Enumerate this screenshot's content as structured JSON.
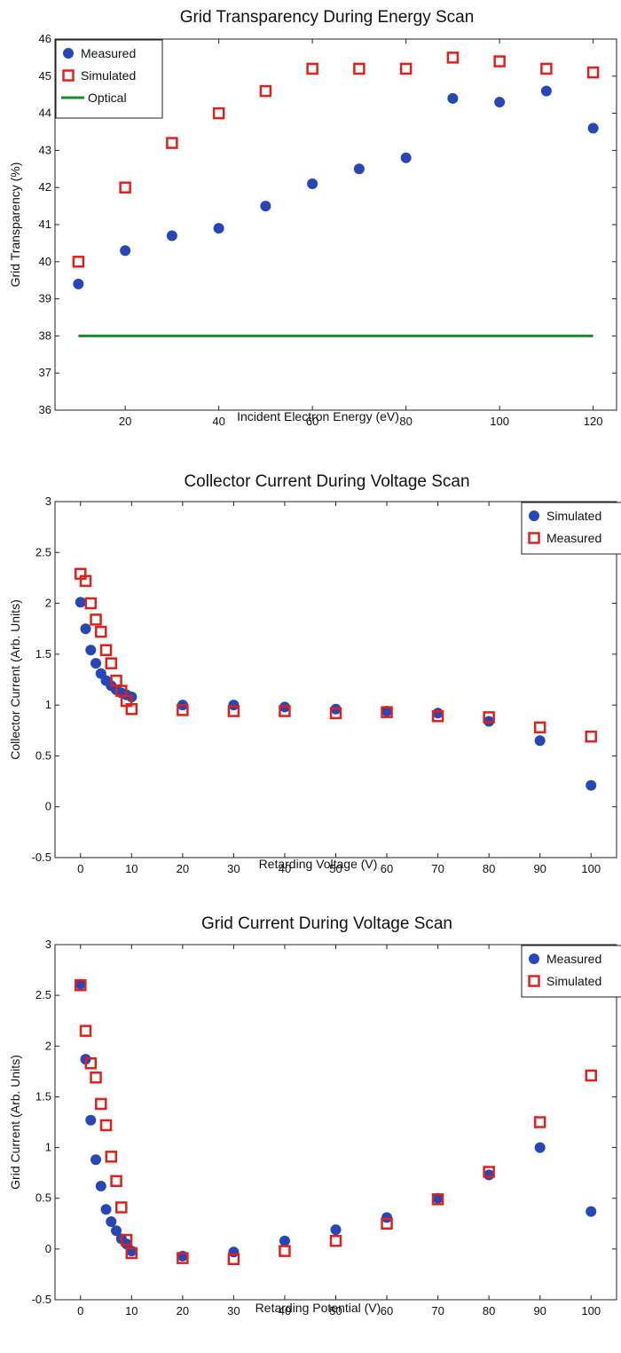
{
  "figure": {
    "colors": {
      "measured": "#2747b8",
      "simulated": "#e0201b",
      "optical": "#1a8a2e"
    }
  },
  "chart_data": [
    {
      "type": "scatter",
      "title": "Grid Transparency During Energy Scan",
      "xlabel": "Incident Electron Energy (eV)",
      "ylabel": "Grid Transparency (%)",
      "xlim": [
        5,
        125
      ],
      "ylim": [
        36,
        46
      ],
      "xticks": [
        "20",
        "40",
        "60",
        "80",
        "100",
        "120"
      ],
      "yticks": [
        "36",
        "37",
        "38",
        "39",
        "40",
        "41",
        "42",
        "43",
        "44",
        "45",
        "46"
      ],
      "legend_position": "top-left",
      "series": [
        {
          "name": "Measured",
          "marker": "circle",
          "color": "#2747b8",
          "x": [
            10,
            20,
            30,
            40,
            50,
            60,
            70,
            80,
            90,
            100,
            110,
            120
          ],
          "y": [
            39.4,
            40.3,
            40.7,
            40.9,
            41.5,
            42.1,
            42.5,
            42.8,
            44.4,
            44.3,
            44.6,
            43.6
          ]
        },
        {
          "name": "Simulated",
          "marker": "square",
          "color": "#e0201b",
          "x": [
            10,
            20,
            30,
            40,
            50,
            60,
            70,
            80,
            90,
            100,
            110,
            120
          ],
          "y": [
            40.0,
            42.0,
            43.2,
            44.0,
            44.6,
            45.2,
            45.2,
            45.2,
            45.5,
            45.4,
            45.2,
            45.1
          ]
        },
        {
          "name": "Optical",
          "marker": "line",
          "color": "#1a8a2e",
          "x": [
            10,
            120
          ],
          "y": [
            38.0,
            38.0
          ]
        }
      ]
    },
    {
      "type": "scatter",
      "title": "Collector Current During Voltage Scan",
      "xlabel": "Retarding Voltage (V)",
      "ylabel": "Collector Current (Arb. Units)",
      "xlim": [
        -5,
        105
      ],
      "ylim": [
        -0.5,
        3
      ],
      "xticks": [
        "0",
        "10",
        "20",
        "30",
        "40",
        "50",
        "60",
        "70",
        "80",
        "90",
        "100"
      ],
      "yticks": [
        "-0.5",
        "0",
        "0.5",
        "1",
        "1.5",
        "2",
        "2.5",
        "3"
      ],
      "legend_position": "top-right",
      "series": [
        {
          "name": "Simulated",
          "marker": "circle",
          "color": "#2747b8",
          "x": [
            0,
            1,
            2,
            3,
            4,
            5,
            6,
            7,
            8,
            9,
            10,
            20,
            30,
            40,
            50,
            60,
            70,
            80,
            90,
            100
          ],
          "y": [
            2.01,
            1.75,
            1.54,
            1.41,
            1.31,
            1.24,
            1.19,
            1.15,
            1.12,
            1.1,
            1.08,
            1.0,
            1.0,
            0.98,
            0.96,
            0.94,
            0.92,
            0.84,
            0.65,
            0.21
          ]
        },
        {
          "name": "Measured",
          "marker": "square",
          "color": "#e0201b",
          "x": [
            0,
            1,
            2,
            3,
            4,
            5,
            6,
            7,
            8,
            9,
            10,
            20,
            30,
            40,
            50,
            60,
            70,
            80,
            90,
            100
          ],
          "y": [
            2.29,
            2.22,
            2.0,
            1.84,
            1.72,
            1.54,
            1.41,
            1.24,
            1.14,
            1.04,
            0.96,
            0.95,
            0.94,
            0.94,
            0.92,
            0.93,
            0.89,
            0.88,
            0.78,
            0.69
          ]
        }
      ]
    },
    {
      "type": "scatter",
      "title": "Grid Current During Voltage Scan",
      "xlabel": "Retarding Potential (V)",
      "ylabel": "Grid Current (Arb. Units)",
      "xlim": [
        -5,
        105
      ],
      "ylim": [
        -0.5,
        3
      ],
      "xticks": [
        "0",
        "10",
        "20",
        "30",
        "40",
        "50",
        "60",
        "70",
        "80",
        "90",
        "100"
      ],
      "yticks": [
        "-0.5",
        "0",
        "0.5",
        "1",
        "1.5",
        "2",
        "2.5",
        "3"
      ],
      "legend_position": "top-right",
      "series": [
        {
          "name": "Measured",
          "marker": "circle",
          "color": "#2747b8",
          "x": [
            0,
            1,
            2,
            3,
            4,
            5,
            6,
            7,
            8,
            9,
            10,
            20,
            30,
            40,
            50,
            60,
            70,
            80,
            90,
            100
          ],
          "y": [
            2.61,
            1.87,
            1.27,
            0.88,
            0.62,
            0.39,
            0.27,
            0.18,
            0.1,
            0.05,
            -0.02,
            -0.07,
            -0.03,
            0.08,
            0.19,
            0.31,
            0.5,
            0.73,
            1.0,
            0.37
          ]
        },
        {
          "name": "Simulated",
          "marker": "square",
          "color": "#e0201b",
          "x": [
            0,
            1,
            2,
            3,
            4,
            5,
            6,
            7,
            8,
            9,
            10,
            20,
            30,
            40,
            50,
            60,
            70,
            80,
            90,
            100
          ],
          "y": [
            2.6,
            2.15,
            1.83,
            1.69,
            1.43,
            1.22,
            0.91,
            0.67,
            0.41,
            0.09,
            -0.04,
            -0.09,
            -0.1,
            -0.02,
            0.08,
            0.25,
            0.49,
            0.76,
            1.25,
            1.71
          ]
        }
      ]
    }
  ]
}
